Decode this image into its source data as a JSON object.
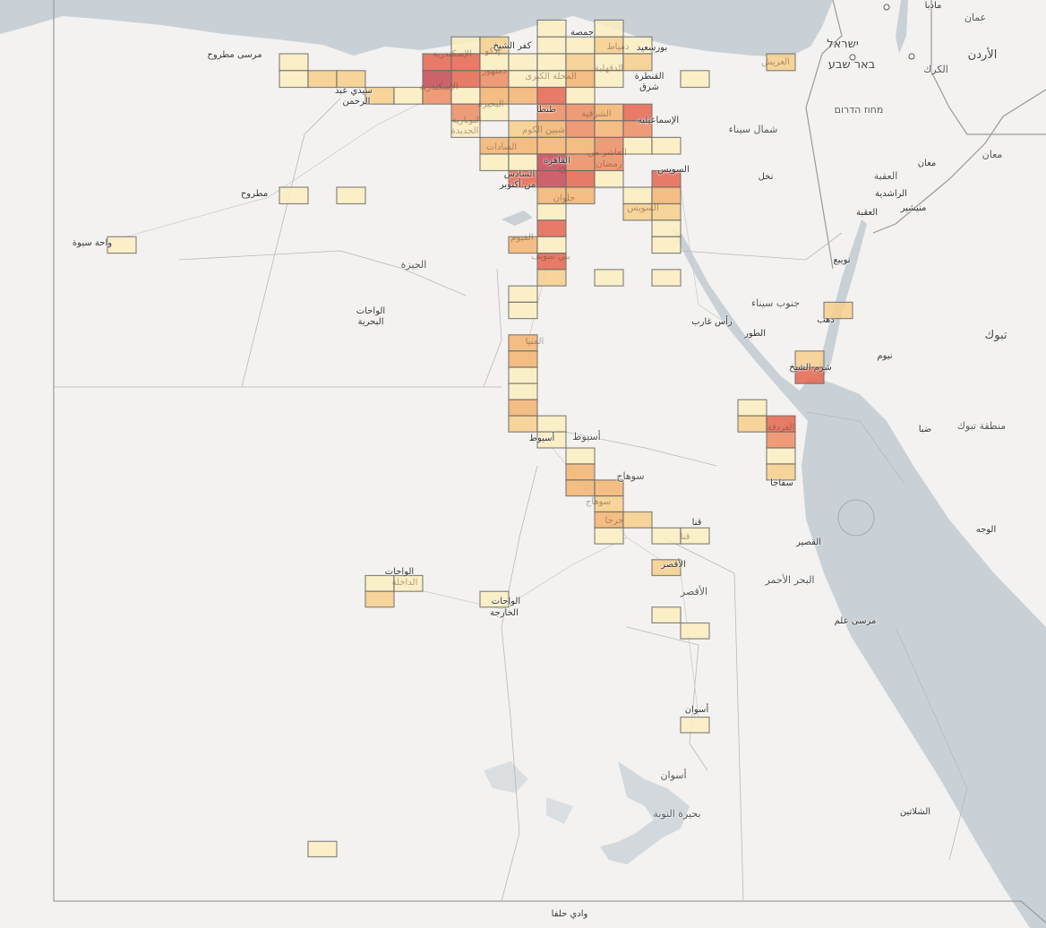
{
  "map": {
    "basemap": "light-gray",
    "colors": {
      "land": "#f3f2f0",
      "water": "#c9d1d7",
      "border": "#9a9a9a",
      "cell_border": "#6b6b6b"
    },
    "heat_levels": {
      "1": "#fcefc0",
      "2": "#f6cf8b",
      "3": "#f2b470",
      "4": "#ec8d62",
      "5": "#e4664f",
      "6": "#c44a55"
    }
  },
  "heat_cells": [
    [
      31.2,
      31.7,
      1
    ],
    [
      32.0,
      31.7,
      1
    ],
    [
      30.0,
      31.5,
      1
    ],
    [
      30.4,
      31.5,
      2
    ],
    [
      31.2,
      31.5,
      1
    ],
    [
      31.6,
      31.5,
      1
    ],
    [
      32.0,
      31.5,
      2
    ],
    [
      32.4,
      31.5,
      1
    ],
    [
      27.6,
      31.3,
      1
    ],
    [
      29.6,
      31.3,
      5
    ],
    [
      30.0,
      31.3,
      5
    ],
    [
      30.4,
      31.3,
      1
    ],
    [
      30.8,
      31.3,
      1
    ],
    [
      31.2,
      31.3,
      1
    ],
    [
      31.6,
      31.3,
      2
    ],
    [
      32.0,
      31.3,
      1
    ],
    [
      32.4,
      31.3,
      2
    ],
    [
      34.4,
      31.3,
      2
    ],
    [
      27.6,
      31.1,
      1
    ],
    [
      28.0,
      31.1,
      2
    ],
    [
      28.4,
      31.1,
      2
    ],
    [
      29.6,
      31.1,
      6
    ],
    [
      30.0,
      31.1,
      5
    ],
    [
      30.4,
      31.1,
      4
    ],
    [
      30.8,
      31.1,
      1
    ],
    [
      31.2,
      31.1,
      1
    ],
    [
      31.6,
      31.1,
      3
    ],
    [
      32.0,
      31.1,
      1
    ],
    [
      33.2,
      31.1,
      1
    ],
    [
      28.8,
      30.9,
      2
    ],
    [
      29.2,
      30.9,
      1
    ],
    [
      29.6,
      30.9,
      4
    ],
    [
      30.0,
      30.9,
      1
    ],
    [
      30.4,
      30.9,
      3
    ],
    [
      30.8,
      30.9,
      3
    ],
    [
      31.2,
      30.9,
      5
    ],
    [
      31.6,
      30.9,
      1
    ],
    [
      30.0,
      30.7,
      4
    ],
    [
      30.4,
      30.7,
      1
    ],
    [
      31.2,
      30.7,
      4
    ],
    [
      31.6,
      30.7,
      4
    ],
    [
      32.0,
      30.7,
      3
    ],
    [
      32.4,
      30.7,
      5
    ],
    [
      30.0,
      30.5,
      1
    ],
    [
      30.8,
      30.5,
      2
    ],
    [
      31.2,
      30.5,
      3
    ],
    [
      31.6,
      30.5,
      4
    ],
    [
      32.0,
      30.5,
      3
    ],
    [
      32.4,
      30.5,
      4
    ],
    [
      30.4,
      30.3,
      3
    ],
    [
      30.8,
      30.3,
      3
    ],
    [
      31.2,
      30.3,
      3
    ],
    [
      31.6,
      30.3,
      3
    ],
    [
      32.0,
      30.3,
      4
    ],
    [
      32.4,
      30.3,
      1
    ],
    [
      32.8,
      30.3,
      1
    ],
    [
      30.4,
      30.1,
      1
    ],
    [
      30.8,
      30.1,
      1
    ],
    [
      31.2,
      30.1,
      6
    ],
    [
      31.6,
      30.1,
      4
    ],
    [
      32.0,
      30.1,
      4
    ],
    [
      30.8,
      29.9,
      5
    ],
    [
      31.2,
      29.9,
      6
    ],
    [
      31.6,
      29.9,
      5
    ],
    [
      32.0,
      29.9,
      1
    ],
    [
      32.8,
      29.9,
      5
    ],
    [
      27.6,
      29.7,
      1
    ],
    [
      28.4,
      29.7,
      1
    ],
    [
      31.2,
      29.7,
      3
    ],
    [
      31.6,
      29.7,
      3
    ],
    [
      32.4,
      29.7,
      1
    ],
    [
      32.8,
      29.7,
      3
    ],
    [
      31.2,
      29.5,
      1
    ],
    [
      32.4,
      29.5,
      2
    ],
    [
      32.8,
      29.5,
      2
    ],
    [
      31.2,
      29.3,
      5
    ],
    [
      32.8,
      29.3,
      1
    ],
    [
      25.2,
      29.1,
      1
    ],
    [
      30.8,
      29.1,
      3
    ],
    [
      31.2,
      29.1,
      1
    ],
    [
      32.8,
      29.1,
      1
    ],
    [
      31.2,
      28.9,
      5
    ],
    [
      31.2,
      28.7,
      2
    ],
    [
      32.0,
      28.7,
      1
    ],
    [
      32.8,
      28.7,
      1
    ],
    [
      30.8,
      28.5,
      1
    ],
    [
      30.8,
      28.3,
      1
    ],
    [
      35.2,
      28.3,
      2
    ],
    [
      30.8,
      27.9,
      3
    ],
    [
      30.8,
      27.7,
      3
    ],
    [
      34.8,
      27.7,
      2
    ],
    [
      30.8,
      27.5,
      1
    ],
    [
      34.8,
      27.5,
      5
    ],
    [
      30.8,
      27.3,
      1
    ],
    [
      30.8,
      27.1,
      3
    ],
    [
      34.0,
      27.1,
      1
    ],
    [
      30.8,
      26.9,
      2
    ],
    [
      31.2,
      26.9,
      1
    ],
    [
      34.0,
      26.9,
      2
    ],
    [
      34.4,
      26.9,
      5
    ],
    [
      31.2,
      26.7,
      1
    ],
    [
      34.4,
      26.7,
      4
    ],
    [
      31.6,
      26.5,
      1
    ],
    [
      34.4,
      26.5,
      1
    ],
    [
      31.6,
      26.3,
      3
    ],
    [
      34.4,
      26.3,
      2
    ],
    [
      31.6,
      26.1,
      3
    ],
    [
      32.0,
      26.1,
      3
    ],
    [
      32.0,
      25.9,
      2
    ],
    [
      32.0,
      25.7,
      3
    ],
    [
      32.4,
      25.7,
      2
    ],
    [
      32.0,
      25.5,
      1
    ],
    [
      32.8,
      25.5,
      1
    ],
    [
      33.2,
      25.5,
      1
    ],
    [
      32.8,
      25.1,
      2
    ],
    [
      28.8,
      24.9,
      1
    ],
    [
      29.2,
      24.9,
      1
    ],
    [
      28.8,
      24.7,
      2
    ],
    [
      30.4,
      24.7,
      1
    ],
    [
      32.8,
      24.5,
      1
    ],
    [
      33.2,
      24.3,
      1
    ],
    [
      33.2,
      23.1,
      1
    ],
    [
      28.0,
      21.5,
      1
    ]
  ],
  "labels": [
    "مرسى مطروح",
    "سيدي عبد",
    "الرحمن",
    "مطروح",
    "واحة سيوة",
    "الجيزة",
    "الواحات",
    "البحرية",
    "الواحات",
    "الداخلة",
    "الواحات",
    "الخارجة",
    "أسيوط",
    "أسيوط",
    "سوهاج",
    "قنا",
    "الأقصر",
    "أسوان",
    "أسوان",
    "بحيرة النوبة",
    "وادي حلفا",
    "القصير",
    "البحر الأحمر",
    "مرسى علم",
    "الشلاتين",
    "سفاجا",
    "الغردقة",
    "رأس غارب",
    "الطور",
    "جنوب سيناء",
    "دهب",
    "شرم الشيخ",
    "نويبع",
    "نيوم",
    "تبوك",
    "ضبا",
    "منطقة تبوك",
    "الوجه",
    "نخل",
    "شمال سيناء",
    "العريش",
    "ישראל",
    "באר שבע",
    "מחוז הדרום",
    "الأردن",
    "عمان",
    "مادبا",
    "الكرك",
    "معان",
    "معان",
    "العقبة",
    "الراشدية",
    "منيشير",
    "العقبة",
    "بورسعيد",
    "القنطرة",
    "شرق",
    "الإسماعيلية",
    "السويس",
    "القاهرة",
    "السادس",
    "من أكتوبر",
    "حلوان",
    "الفيوم",
    "بني سويف",
    "المنيا",
    "طنطا",
    "شبين الكوم",
    "السادات",
    "المحلة الكبرى",
    "كفر الشيخ",
    "دمياط",
    "جمصة",
    "الإسكندرية",
    "دمنهور",
    "البحيرة",
    "إدكو",
    "النوبارية",
    "الجديدة",
    "الشرقية",
    "العاشر من",
    "رمضان",
    "سوهاج",
    "جرجا",
    "قنا",
    "الأقصر",
    "الدقهلية",
    "الإسكندرية",
    "السويس"
  ]
}
